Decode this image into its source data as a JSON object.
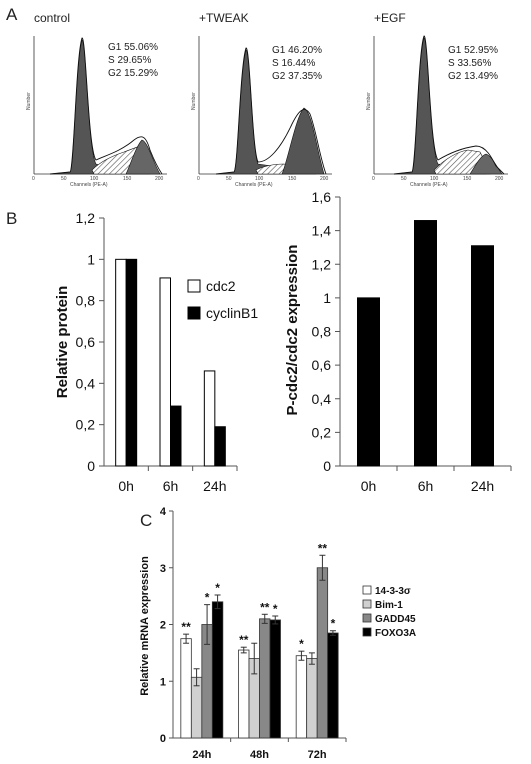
{
  "panel_a": {
    "letter": "A",
    "x_axis_label": "Channels (PE-A)",
    "y_axis_label": "Number",
    "x_ticks": [
      "0",
      "50",
      "100",
      "150",
      "200"
    ],
    "histograms": [
      {
        "title": "control",
        "stats": [
          "G1 55.06%",
          "S 29.65%",
          "G2 15.29%"
        ]
      },
      {
        "title": "+TWEAK",
        "stats": [
          "G1 46.20%",
          "S 16.44%",
          "G2 37.35%"
        ]
      },
      {
        "title": "+EGF",
        "stats": [
          "G1 52.95%",
          "S 33.56%",
          "G2 13.49%"
        ]
      }
    ]
  },
  "panel_b": {
    "letter": "B"
  },
  "panel_c": {
    "letter": "C"
  },
  "chart_data": [
    {
      "type": "bar",
      "panel": "B-left",
      "categories": [
        "0h",
        "6h",
        "24h"
      ],
      "series": [
        {
          "name": "cdc2",
          "values": [
            1.0,
            0.91,
            0.46
          ],
          "color": "#ffffff"
        },
        {
          "name": "cyclinB1",
          "values": [
            1.0,
            0.29,
            0.19
          ],
          "color": "#000000"
        }
      ],
      "ylabel": "Relative protein",
      "ylim": [
        0,
        1.2
      ],
      "yticks": [
        "0",
        "0,2",
        "0,4",
        "0,6",
        "0,8",
        "1",
        "1,2"
      ],
      "legend": "right",
      "grid": false
    },
    {
      "type": "bar",
      "panel": "B-right",
      "categories": [
        "0h",
        "6h",
        "24h"
      ],
      "values": [
        1.0,
        1.46,
        1.31
      ],
      "color": "#000000",
      "ylabel": "P-cdc2/cdc2 expression",
      "ylim": [
        0,
        1.6
      ],
      "yticks": [
        "0",
        "0,2",
        "0,4",
        "0,6",
        "0,8",
        "1",
        "1,2",
        "1,4",
        "1,6"
      ],
      "grid": false
    },
    {
      "type": "bar",
      "panel": "C",
      "categories": [
        "24h",
        "48h",
        "72h"
      ],
      "series": [
        {
          "name": "14-3-3σ",
          "values": [
            1.75,
            1.55,
            1.45
          ],
          "errors": [
            0.08,
            0.05,
            0.08
          ],
          "marks": [
            "**",
            "**",
            "*"
          ],
          "color": "#ffffff"
        },
        {
          "name": "Bim-1",
          "values": [
            1.07,
            1.4,
            1.4
          ],
          "errors": [
            0.15,
            0.27,
            0.1
          ],
          "marks": [
            "",
            "",
            ""
          ],
          "color": "#d0d0d0"
        },
        {
          "name": "GADD45",
          "values": [
            2.0,
            2.1,
            3.0
          ],
          "errors": [
            0.35,
            0.08,
            0.22
          ],
          "marks": [
            "*",
            "**",
            "**"
          ],
          "color": "#888888"
        },
        {
          "name": "FOXO3A",
          "values": [
            2.4,
            2.08,
            1.85
          ],
          "errors": [
            0.12,
            0.07,
            0.04
          ],
          "marks": [
            "*",
            "*",
            "*"
          ],
          "color": "#000000"
        }
      ],
      "ylabel": "Relative mRNA expression",
      "ylim": [
        0,
        4
      ],
      "yticks": [
        "0",
        "1",
        "2",
        "3",
        "4"
      ],
      "legend": "right",
      "grid": false
    }
  ]
}
